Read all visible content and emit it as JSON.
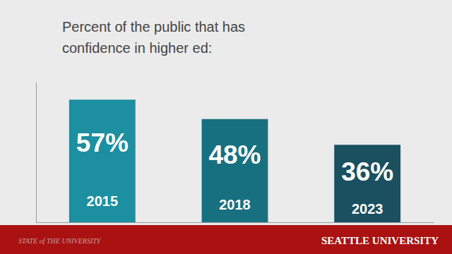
{
  "chart_data": {
    "type": "bar",
    "title": "Percent of the public that has\nconfidence in higher ed:",
    "categories": [
      "2015",
      "2018",
      "2023"
    ],
    "values": [
      57,
      48,
      36
    ],
    "value_labels": [
      "57%",
      "48%",
      "36%"
    ],
    "data_labels": true,
    "colors": [
      "#1c8fa0",
      "#177080",
      "#1a5060"
    ],
    "ylim": [
      0,
      65
    ],
    "grid": false,
    "tick_labels": false,
    "annotations": [
      "STATE of THE UNIVERSITY",
      "SEATTLE UNIVERSITY"
    ]
  }
}
